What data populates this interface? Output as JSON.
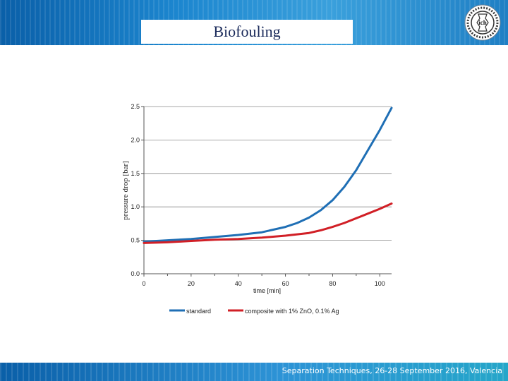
{
  "slide": {
    "title": "Biofouling",
    "footer": "Separation Techniques, 26-28 September 2016, Valencia",
    "logo_text": "ich"
  },
  "colors": {
    "header": "#1c86cf",
    "standard": "#1f6fb5",
    "composite": "#d11f26"
  },
  "chart_data": {
    "type": "line",
    "title": "",
    "xlabel": "time [min]",
    "ylabel": "pressure drop [bar]",
    "xlim": [
      0,
      105
    ],
    "ylim": [
      0,
      2.5
    ],
    "x_ticks": [
      0,
      20,
      40,
      60,
      80,
      100
    ],
    "y_ticks": [
      "0.0",
      "0.5",
      "1.0",
      "1.5",
      "2.0",
      "2.5"
    ],
    "legend_position": "bottom",
    "series": [
      {
        "name": "standard",
        "color": "#1f6fb5",
        "x": [
          0,
          10,
          20,
          30,
          40,
          50,
          60,
          65,
          70,
          75,
          80,
          85,
          90,
          95,
          100,
          105
        ],
        "y": [
          0.48,
          0.5,
          0.52,
          0.55,
          0.58,
          0.62,
          0.7,
          0.76,
          0.84,
          0.95,
          1.1,
          1.3,
          1.55,
          1.85,
          2.15,
          2.48
        ]
      },
      {
        "name": "composite with 1% ZnO, 0.1% Ag",
        "color": "#d11f26",
        "x": [
          0,
          10,
          20,
          30,
          40,
          50,
          60,
          70,
          75,
          80,
          85,
          90,
          95,
          100,
          105
        ],
        "y": [
          0.46,
          0.47,
          0.49,
          0.51,
          0.52,
          0.54,
          0.57,
          0.61,
          0.65,
          0.7,
          0.76,
          0.83,
          0.9,
          0.97,
          1.05
        ]
      }
    ]
  }
}
